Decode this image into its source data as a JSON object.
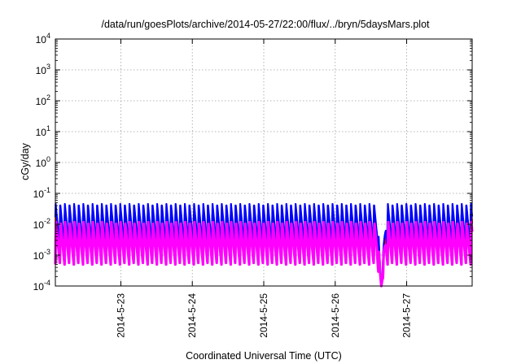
{
  "chart_data": {
    "type": "line",
    "title": "/data/run/goesPlots/archive/2014-05-27/22:00/flux/../bryn/5daysMars.plot",
    "xlabel": "Coordinated Universal Time (UTC)",
    "ylabel": "cGy/day",
    "y_scale": "log",
    "ylim": [
      0.0001,
      10000
    ],
    "y_ticks": [
      {
        "value": 0.0001,
        "base": "10",
        "exp": "-4"
      },
      {
        "value": 0.001,
        "base": "10",
        "exp": "-3"
      },
      {
        "value": 0.01,
        "base": "10",
        "exp": "-2"
      },
      {
        "value": 0.1,
        "base": "10",
        "exp": "-1"
      },
      {
        "value": 1,
        "base": "10",
        "exp": "0"
      },
      {
        "value": 10,
        "base": "10",
        "exp": "1"
      },
      {
        "value": 100,
        "base": "10",
        "exp": "2"
      },
      {
        "value": 1000,
        "base": "10",
        "exp": "3"
      },
      {
        "value": 10000,
        "base": "10",
        "exp": "4"
      }
    ],
    "xlim": [
      "2014-05-22T02:00",
      "2014-05-27T22:00"
    ],
    "x_ticks": [
      {
        "value": "2014-05-23T00:00",
        "label": "2014-5-23"
      },
      {
        "value": "2014-05-24T00:00",
        "label": "2014-5-24"
      },
      {
        "value": "2014-05-25T00:00",
        "label": "2014-5-25"
      },
      {
        "value": "2014-05-26T00:00",
        "label": "2014-5-26"
      },
      {
        "value": "2014-05-27T00:00",
        "label": "2014-5-27"
      }
    ],
    "grid": true,
    "legend": "none",
    "orbit_period_hours": 1.55,
    "series": [
      {
        "color": "#ff00ff",
        "peak": 0.012,
        "trough": 0.0005
      },
      {
        "color": "#ff0000",
        "peak": 0.03,
        "trough": 0.0008
      },
      {
        "color": "#0000ff",
        "peak": 0.05,
        "trough": 0.002
      },
      {
        "color": "#008080",
        "peak": 0.02,
        "trough": 0.003
      },
      {
        "color": "#00ffff",
        "peak": 0.012,
        "trough": 0.005
      }
    ],
    "dropout": {
      "start": "2014-05-26T14:00",
      "end": "2014-05-26T17:00",
      "min": 0.0001
    }
  }
}
